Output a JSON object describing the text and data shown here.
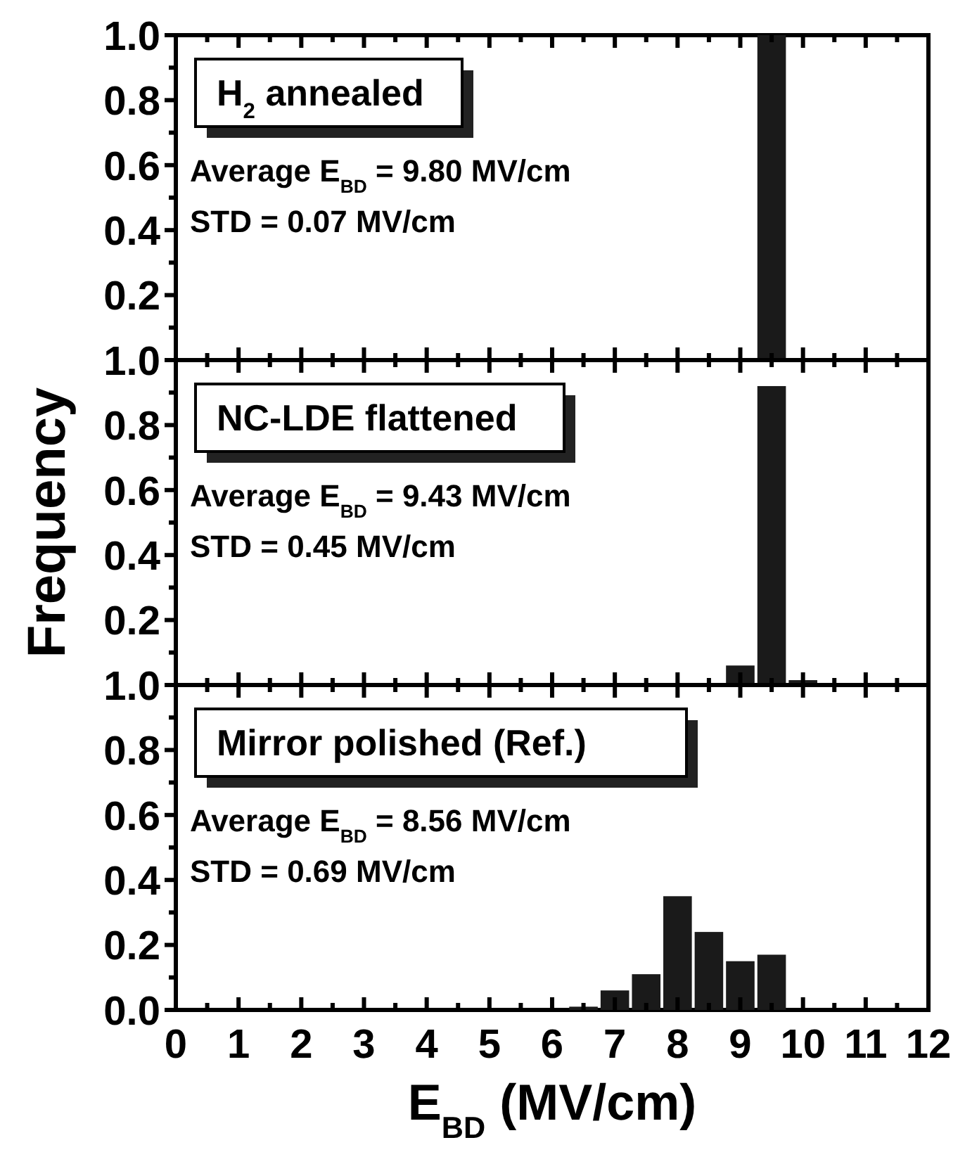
{
  "chart_data": [
    {
      "type": "histogram",
      "title": "H$_{2}$ annealed",
      "annotations": [
        "Average E$_{BD}$ = 9.80 MV/cm",
        "STD = 0.07 MV/cm"
      ],
      "bins": [
        5.75,
        6.25,
        6.75,
        7.25,
        7.75,
        8.25,
        8.75,
        9.25,
        9.75,
        10.25
      ],
      "values": [
        0,
        0,
        0,
        0,
        0,
        0,
        0,
        1.0,
        0
      ],
      "color": "#1a1a1a",
      "xlim": [
        0,
        12
      ],
      "xticks": [
        {
          "value": 0,
          "label": null
        },
        {
          "value": 1,
          "label": null
        },
        {
          "value": 2,
          "label": null
        },
        {
          "value": 3,
          "label": null
        },
        {
          "value": 4,
          "label": null
        },
        {
          "value": 5,
          "label": null
        },
        {
          "value": 6,
          "label": null
        },
        {
          "value": 7,
          "label": null
        },
        {
          "value": 8,
          "label": null
        },
        {
          "value": 9,
          "label": null
        },
        {
          "value": 10,
          "label": null
        },
        {
          "value": 11,
          "label": null
        },
        {
          "value": 12,
          "label": null
        }
      ],
      "ylim": [
        0,
        1
      ],
      "yticks": [
        {
          "value": 0.2,
          "label": "0.2"
        },
        {
          "value": 0.4,
          "label": "0.4"
        },
        {
          "value": 0.6,
          "label": "0.6"
        },
        {
          "value": 0.8,
          "label": "0.8"
        },
        {
          "value": 1,
          "label": "1.0"
        }
      ],
      "tick_labels": "y"
    },
    {
      "type": "histogram",
      "title": "NC-LDE flattened",
      "ylabel": "Frequency",
      "annotations": [
        "Average E$_{BD}$ = 9.43 MV/cm",
        "STD = 0.45 MV/cm"
      ],
      "bins": [
        5.75,
        6.25,
        6.75,
        7.25,
        7.75,
        8.25,
        8.75,
        9.25,
        9.75,
        10.25
      ],
      "values": [
        0,
        0,
        0,
        0,
        0.005,
        0,
        0.06,
        0.92,
        0.015
      ],
      "color": "#1a1a1a",
      "xlim": [
        0,
        12
      ],
      "xticks": [
        {
          "value": 0,
          "label": null
        },
        {
          "value": 1,
          "label": null
        },
        {
          "value": 2,
          "label": null
        },
        {
          "value": 3,
          "label": null
        },
        {
          "value": 4,
          "label": null
        },
        {
          "value": 5,
          "label": null
        },
        {
          "value": 6,
          "label": null
        },
        {
          "value": 7,
          "label": null
        },
        {
          "value": 8,
          "label": null
        },
        {
          "value": 9,
          "label": null
        },
        {
          "value": 10,
          "label": null
        },
        {
          "value": 11,
          "label": null
        },
        {
          "value": 12,
          "label": null
        }
      ],
      "ylim": [
        0,
        1
      ],
      "yticks": [
        {
          "value": 0.2,
          "label": "0.2"
        },
        {
          "value": 0.4,
          "label": "0.4"
        },
        {
          "value": 0.6,
          "label": "0.6"
        },
        {
          "value": 0.8,
          "label": "0.8"
        },
        {
          "value": 1,
          "label": "1.0"
        }
      ],
      "tick_labels": "y"
    },
    {
      "type": "histogram",
      "title": "Mirror polished (Ref.)",
      "xlabel": "E$_{BD}$ (MV/cm)",
      "annotations": [
        "Average E$_{BD}$ = 8.56 MV/cm",
        "STD = 0.69 MV/cm"
      ],
      "bins": [
        5.75,
        6.25,
        6.75,
        7.25,
        7.75,
        8.25,
        8.75,
        9.25,
        9.75,
        10.25
      ],
      "values": [
        0,
        0.01,
        0.06,
        0.11,
        0.35,
        0.24,
        0.15,
        0.17,
        0
      ],
      "color": "#1a1a1a",
      "xlim": [
        0,
        12
      ],
      "xticks": [
        0,
        1,
        2,
        3,
        4,
        5,
        6,
        7,
        8,
        9,
        10,
        11,
        12
      ],
      "ylim": [
        0,
        1
      ],
      "yticks": [
        {
          "value": 0,
          "label": "0.0"
        },
        {
          "value": 0.2,
          "label": "0.2"
        },
        {
          "value": 0.4,
          "label": "0.4"
        },
        {
          "value": 0.6,
          "label": "0.6"
        },
        {
          "value": 0.8,
          "label": "0.8"
        },
        {
          "value": 1,
          "label": "1.0"
        }
      ]
    }
  ]
}
